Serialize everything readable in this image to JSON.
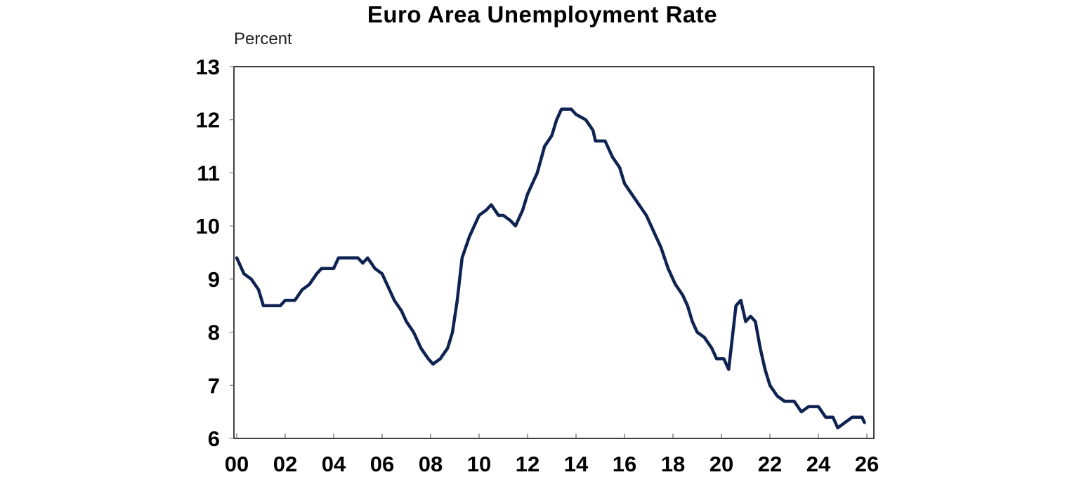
{
  "chart_data": {
    "type": "line",
    "title": "Euro Area Unemployment Rate",
    "ylabel": "Percent",
    "xlabel": "",
    "ylim": [
      6,
      13
    ],
    "xlim": [
      2000,
      2026
    ],
    "yticks": [
      "6",
      "7",
      "8",
      "9",
      "10",
      "11",
      "12",
      "13"
    ],
    "xticks": [
      "00",
      "02",
      "04",
      "06",
      "08",
      "10",
      "12",
      "14",
      "16",
      "18",
      "20",
      "22",
      "24",
      "26"
    ],
    "grid": false,
    "legend": null,
    "line_color": "#0f2352",
    "series": [
      {
        "name": "Euro Area Unemployment Rate",
        "x": [
          2000.0,
          2000.3,
          2000.6,
          2000.9,
          2001.1,
          2001.8,
          2002.0,
          2002.4,
          2002.7,
          2003.0,
          2003.3,
          2003.5,
          2004.0,
          2004.2,
          2005.0,
          2005.2,
          2005.4,
          2005.7,
          2006.0,
          2006.5,
          2006.8,
          2007.0,
          2007.3,
          2007.6,
          2007.9,
          2008.1,
          2008.4,
          2008.7,
          2008.9,
          2009.1,
          2009.3,
          2009.6,
          2010.0,
          2010.3,
          2010.5,
          2010.8,
          2011.0,
          2011.3,
          2011.5,
          2011.8,
          2012.0,
          2012.4,
          2012.7,
          2013.0,
          2013.2,
          2013.4,
          2013.8,
          2014.0,
          2014.4,
          2014.7,
          2014.8,
          2015.2,
          2015.5,
          2015.8,
          2016.0,
          2016.3,
          2016.6,
          2016.9,
          2017.2,
          2017.5,
          2017.8,
          2018.1,
          2018.4,
          2018.6,
          2018.8,
          2019.0,
          2019.3,
          2019.6,
          2019.8,
          2020.1,
          2020.3,
          2020.6,
          2020.8,
          2021.0,
          2021.2,
          2021.4,
          2021.6,
          2021.8,
          2022.0,
          2022.3,
          2022.6,
          2023.0,
          2023.3,
          2023.6,
          2024.0,
          2024.3,
          2024.6,
          2024.8,
          2025.1,
          2025.4,
          2025.8,
          2025.9
        ],
        "values": [
          9.4,
          9.1,
          9.0,
          8.8,
          8.5,
          8.5,
          8.6,
          8.6,
          8.8,
          8.9,
          9.1,
          9.2,
          9.2,
          9.4,
          9.4,
          9.3,
          9.4,
          9.2,
          9.1,
          8.6,
          8.4,
          8.2,
          8.0,
          7.7,
          7.5,
          7.4,
          7.5,
          7.7,
          8.0,
          8.6,
          9.4,
          9.8,
          10.2,
          10.3,
          10.4,
          10.2,
          10.2,
          10.1,
          10.0,
          10.3,
          10.6,
          11.0,
          11.5,
          11.7,
          12.0,
          12.2,
          12.2,
          12.1,
          12.0,
          11.8,
          11.6,
          11.6,
          11.3,
          11.1,
          10.8,
          10.6,
          10.4,
          10.2,
          9.9,
          9.6,
          9.2,
          8.9,
          8.7,
          8.5,
          8.2,
          8.0,
          7.9,
          7.7,
          7.5,
          7.5,
          7.3,
          8.5,
          8.6,
          8.2,
          8.3,
          8.2,
          7.7,
          7.3,
          7.0,
          6.8,
          6.7,
          6.7,
          6.5,
          6.6,
          6.6,
          6.4,
          6.4,
          6.2,
          6.3,
          6.4,
          6.4,
          6.3
        ]
      }
    ]
  }
}
